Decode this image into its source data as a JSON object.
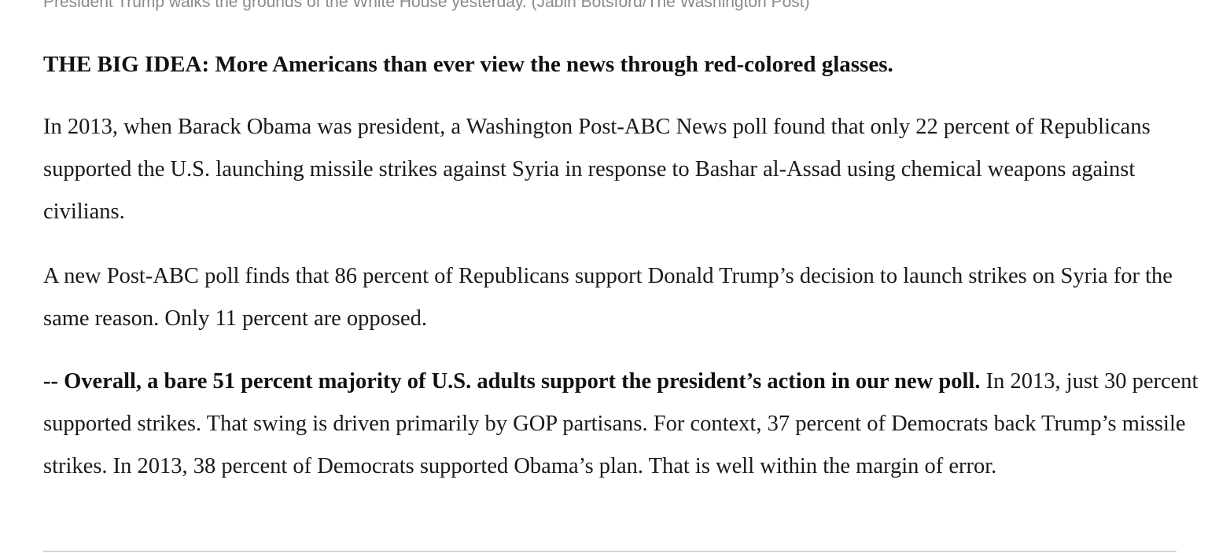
{
  "caption": "President Trump walks the grounds of the White House yesterday. (Jabin Botsford/The Washington Post)",
  "headline": "THE BIG IDEA: More Americans than ever view the news through red-colored glasses.",
  "paragraphs": {
    "p1": "In 2013, when Barack Obama was president, a Washington Post-ABC News poll found that only 22 percent of Republicans supported the U.S. launching missile strikes against Syria in response to Bashar al-Assad using chemical weapons against civilians.",
    "p2": "A new Post-ABC poll finds that 86 percent of Republicans support Donald Trump’s decision to launch strikes on Syria for the same reason. Only 11 percent are opposed.",
    "p3_bold": "-- Overall, a bare 51 percent majority of U.S. adults support the president’s action in our new poll.",
    "p3_rest": " In 2013, just 30 percent supported strikes. That swing is driven primarily by GOP partisans. For context, 37 percent of Democrats back Trump’s missile strikes. In 2013, 38 percent of Democrats supported Obama’s plan. That is well within the margin of error."
  }
}
